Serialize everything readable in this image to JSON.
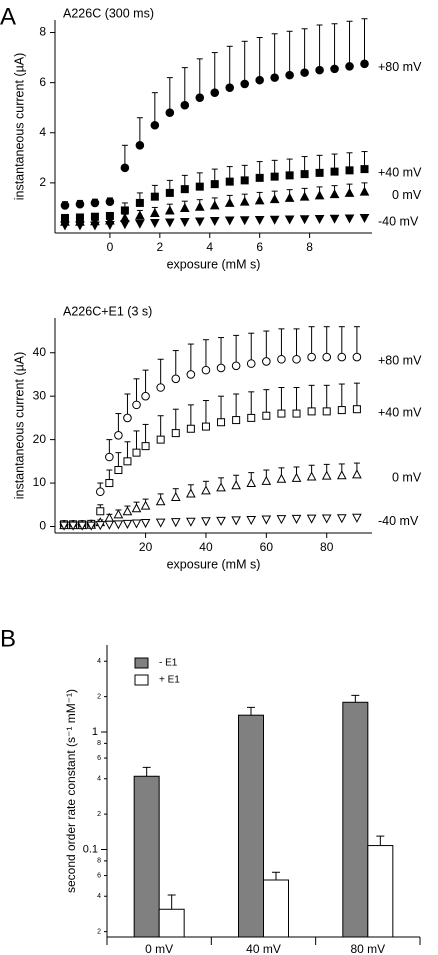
{
  "chart_data": [
    {
      "type": "scatter",
      "panel": "A",
      "title": "A226C (300 ms)",
      "xlabel": "exposure (mM s)",
      "ylabel": "instantaneous current (µA)",
      "x": [
        -1.8,
        -1.2,
        -0.6,
        0,
        0.6,
        1.2,
        1.8,
        2.4,
        3.0,
        3.6,
        4.2,
        4.8,
        5.4,
        6.0,
        6.6,
        7.2,
        7.8,
        8.4,
        9.0,
        9.6,
        10.2
      ],
      "xlim": [
        -2.2,
        10.5
      ],
      "ylim": [
        0,
        8.5
      ],
      "xticks": [
        0,
        2,
        4,
        6,
        8
      ],
      "yticks": [
        2,
        4,
        6,
        8
      ],
      "series": [
        {
          "name": "+80 mV",
          "color": "#000000",
          "marker": "circle",
          "filled": true,
          "values": [
            1.1,
            1.15,
            1.2,
            1.25,
            2.6,
            3.5,
            4.3,
            4.8,
            5.1,
            5.4,
            5.6,
            5.8,
            5.95,
            6.1,
            6.2,
            6.3,
            6.4,
            6.5,
            6.55,
            6.65,
            6.75
          ],
          "errors": [
            0.15,
            0.15,
            0.15,
            0.15,
            0.9,
            1.1,
            1.3,
            1.4,
            1.5,
            1.55,
            1.6,
            1.65,
            1.7,
            1.7,
            1.75,
            1.75,
            1.75,
            1.8,
            1.8,
            1.8,
            1.8
          ]
        },
        {
          "name": "+40 mV",
          "color": "#000000",
          "marker": "square",
          "filled": true,
          "values": [
            0.6,
            0.62,
            0.65,
            0.68,
            0.9,
            1.2,
            1.45,
            1.6,
            1.75,
            1.85,
            1.95,
            2.05,
            2.1,
            2.2,
            2.25,
            2.3,
            2.35,
            2.4,
            2.45,
            2.5,
            2.55
          ],
          "errors": [
            0.1,
            0.1,
            0.1,
            0.1,
            0.3,
            0.4,
            0.45,
            0.5,
            0.55,
            0.55,
            0.6,
            0.6,
            0.6,
            0.65,
            0.65,
            0.65,
            0.7,
            0.7,
            0.7,
            0.7,
            0.7
          ]
        },
        {
          "name": "0 mV",
          "color": "#000000",
          "marker": "triangle-up",
          "filled": true,
          "values": [
            0.45,
            0.45,
            0.47,
            0.5,
            0.6,
            0.7,
            0.8,
            0.9,
            1.0,
            1.05,
            1.1,
            1.2,
            1.25,
            1.3,
            1.35,
            1.4,
            1.45,
            1.5,
            1.55,
            1.6,
            1.65
          ],
          "errors": [
            0.08,
            0.08,
            0.08,
            0.08,
            0.15,
            0.2,
            0.22,
            0.25,
            0.27,
            0.28,
            0.3,
            0.3,
            0.3,
            0.32,
            0.32,
            0.33,
            0.33,
            0.34,
            0.34,
            0.35,
            0.35
          ]
        },
        {
          "name": "-40 mV",
          "color": "#000000",
          "marker": "triangle-down",
          "filled": true,
          "values": [
            0.3,
            0.3,
            0.3,
            0.32,
            0.35,
            0.37,
            0.4,
            0.42,
            0.44,
            0.46,
            0.48,
            0.5,
            0.51,
            0.52,
            0.53,
            0.54,
            0.55,
            0.56,
            0.57,
            0.58,
            0.6
          ],
          "errors": [
            0.05,
            0.05,
            0.05,
            0.05,
            0.08,
            0.08,
            0.09,
            0.09,
            0.1,
            0.1,
            0.1,
            0.1,
            0.1,
            0.1,
            0.1,
            0.1,
            0.1,
            0.1,
            0.1,
            0.1,
            0.1
          ]
        }
      ]
    },
    {
      "type": "scatter",
      "title": "A226C+E1 (3 s)",
      "xlabel": "exposure (mM s)",
      "ylabel": "instantaneous current (µA)",
      "x": [
        -7,
        -4,
        -1,
        2,
        5,
        8,
        11,
        14,
        17,
        20,
        25,
        30,
        35,
        40,
        45,
        50,
        55,
        60,
        65,
        70,
        75,
        80,
        85,
        90
      ],
      "xlim": [
        -10,
        95
      ],
      "ylim": [
        -1.5,
        48
      ],
      "xticks": [
        20,
        40,
        60,
        80
      ],
      "yticks": [
        0,
        10,
        20,
        30,
        40
      ],
      "series": [
        {
          "name": "+80 mV",
          "color": "#000000",
          "marker": "circle",
          "filled": false,
          "values": [
            0.5,
            0.5,
            0.5,
            0.6,
            8,
            16,
            21,
            25,
            28,
            30,
            32,
            34,
            35,
            36,
            36.5,
            37,
            37.5,
            38,
            38.5,
            38.5,
            39,
            39,
            39,
            39
          ],
          "errors": [
            0.3,
            0.3,
            0.3,
            0.4,
            2,
            4,
            5,
            5.5,
            6,
            6,
            6.5,
            6.5,
            7,
            7,
            7,
            7,
            7,
            7,
            7,
            7,
            7,
            7,
            7,
            7
          ]
        },
        {
          "name": "+40 mV",
          "color": "#000000",
          "marker": "square",
          "filled": false,
          "values": [
            0.5,
            0.5,
            0.5,
            0.6,
            3.5,
            10,
            13,
            15,
            17,
            18.5,
            20,
            21.5,
            22.5,
            23,
            24,
            24.5,
            25,
            25.5,
            26,
            26,
            26.5,
            26.5,
            26.8,
            27
          ],
          "errors": [
            0.3,
            0.3,
            0.3,
            0.4,
            1.5,
            3,
            4,
            4.5,
            5,
            5,
            5.5,
            5.5,
            5.5,
            6,
            6,
            6,
            6,
            6,
            6,
            6,
            6,
            6,
            6,
            6
          ]
        },
        {
          "name": "0 mV",
          "color": "#000000",
          "marker": "triangle-up",
          "filled": false,
          "values": [
            0.3,
            0.3,
            0.3,
            0.4,
            1,
            2,
            2.8,
            3.5,
            4.2,
            4.8,
            5.8,
            6.8,
            7.6,
            8.3,
            9,
            9.5,
            10,
            10.5,
            11,
            11.2,
            11.5,
            11.7,
            11.8,
            12
          ],
          "errors": [
            0.2,
            0.2,
            0.2,
            0.2,
            0.5,
            0.8,
            1,
            1.2,
            1.4,
            1.5,
            1.7,
            1.9,
            2,
            2.1,
            2.2,
            2.3,
            2.4,
            2.5,
            2.5,
            2.5,
            2.6,
            2.6,
            2.6,
            2.6
          ]
        },
        {
          "name": "-40 mV",
          "color": "#000000",
          "marker": "triangle-down",
          "filled": false,
          "values": [
            0.2,
            0.2,
            0.2,
            0.2,
            0.3,
            0.4,
            0.5,
            0.6,
            0.7,
            0.8,
            0.9,
            1,
            1.1,
            1.2,
            1.3,
            1.4,
            1.5,
            1.6,
            1.7,
            1.75,
            1.8,
            1.85,
            1.9,
            2
          ],
          "errors": [
            0.3,
            0.3,
            0.3,
            0.3,
            0.3,
            0.3,
            0.3,
            0.3,
            0.3,
            0.3,
            0.3,
            0.3,
            0.3,
            0.3,
            0.3,
            0.3,
            0.3,
            0.3,
            0.3,
            0.3,
            0.3,
            0.3,
            0.3,
            0.3
          ]
        }
      ]
    },
    {
      "type": "bar",
      "panel": "B",
      "ylabel": "second order rate constant (s⁻¹ mM⁻¹)",
      "categories": [
        "0 mV",
        "40 mV",
        "80 mV"
      ],
      "log_scale": true,
      "ylim": [
        0.018,
        5.5
      ],
      "yticks": [
        {
          "value": 0.02,
          "label": "2"
        },
        {
          "value": 0.04,
          "label": "4"
        },
        {
          "value": 0.06,
          "label": "6"
        },
        {
          "value": 0.08,
          "label": "8"
        },
        0.1,
        {
          "value": 0.2,
          "label": "2"
        },
        {
          "value": 0.4,
          "label": "4"
        },
        {
          "value": 0.6,
          "label": "6"
        },
        {
          "value": 0.8,
          "label": "8"
        },
        1,
        {
          "value": 2,
          "label": "2"
        },
        {
          "value": 4,
          "label": "4"
        }
      ],
      "legend": "top-left",
      "series": [
        {
          "name": "- E1",
          "color": "#808080",
          "values": [
            0.42,
            1.39,
            1.79
          ],
          "errors": [
            0.08,
            0.23,
            0.26
          ]
        },
        {
          "name": "+ E1",
          "color": "#ffffff",
          "values": [
            0.031,
            0.055,
            0.108
          ],
          "errors": [
            0.01,
            0.009,
            0.022
          ]
        }
      ]
    }
  ]
}
